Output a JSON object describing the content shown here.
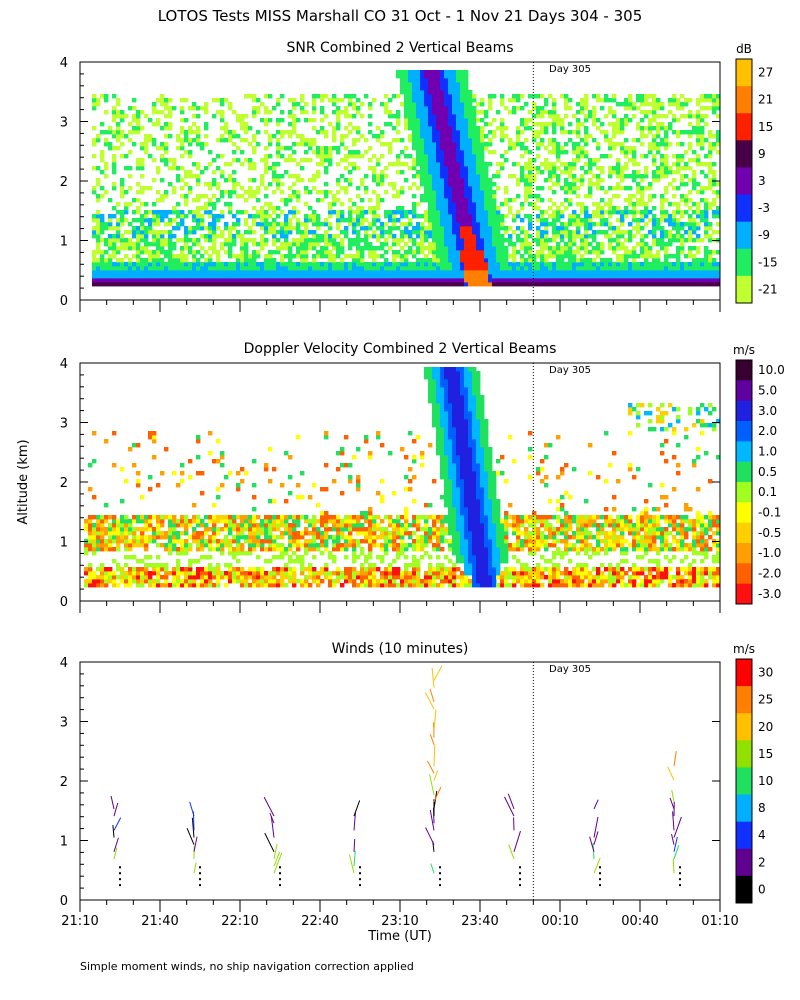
{
  "figure": {
    "title": "LOTOS Tests MISS Marshall CO  31 Oct -  1 Nov 21 Days 304 - 305",
    "ylabel": "Altitude (km)",
    "xlabel": "Time (UT)",
    "footnote": "Simple moment winds, no ship navigation correction applied",
    "day_marker": "Day 305",
    "x_ticks": [
      "21:10",
      "21:40",
      "22:10",
      "22:40",
      "23:10",
      "23:40",
      "00:10",
      "00:40",
      "01:10"
    ],
    "y_ticks": [
      "0",
      "1",
      "2",
      "3",
      "4"
    ]
  },
  "chart_data": [
    {
      "type": "heatmap",
      "title": "SNR Combined 2 Vertical Beams",
      "xlabel": "",
      "ylabel": "Altitude (km)",
      "x_range_minutes_after_2110": [
        0,
        240
      ],
      "ylim": [
        0,
        4
      ],
      "day_boundary_minutes": 170,
      "colorbar": {
        "unit": "dB",
        "ticks": [
          "27",
          "21",
          "15",
          "9",
          "3",
          "-3",
          "-9",
          "-15",
          "-21"
        ],
        "colors": [
          "#ffc000",
          "#ff8000",
          "#ff2000",
          "#480048",
          "#7000b0",
          "#1030ff",
          "#00b0ff",
          "#20ee60",
          "#c0ff30"
        ]
      }
    },
    {
      "type": "heatmap",
      "title": "Doppler Velocity Combined 2 Vertical Beams",
      "xlabel": "",
      "ylabel": "Altitude (km)",
      "x_range_minutes_after_2110": [
        0,
        240
      ],
      "ylim": [
        0,
        4
      ],
      "day_boundary_minutes": 170,
      "colorbar": {
        "unit": "m/s",
        "ticks": [
          "10.0",
          "5.0",
          "3.0",
          "2.0",
          "1.0",
          "0.5",
          "0.1",
          "-0.1",
          "-0.5",
          "-1.0",
          "-2.0",
          "-3.0"
        ],
        "colors": [
          "#380030",
          "#6000a0",
          "#2020e0",
          "#0060ff",
          "#00b8ff",
          "#20e060",
          "#a0ff20",
          "#ffff00",
          "#ffd000",
          "#ffa000",
          "#ff6000",
          "#ff1010"
        ]
      }
    },
    {
      "type": "scatter",
      "title": "Winds (10 minutes)",
      "xlabel": "Time (UT)",
      "ylabel": "Altitude (km)",
      "x_range_minutes_after_2110": [
        0,
        240
      ],
      "ylim": [
        0,
        4
      ],
      "day_boundary_minutes": 170,
      "profile_times_minutes": [
        15,
        45,
        75,
        105,
        135,
        165,
        195,
        225
      ],
      "colorbar": {
        "unit": "m/s",
        "ticks": [
          "30",
          "25",
          "20",
          "15",
          "10",
          "8",
          "4",
          "2",
          "0"
        ],
        "colors": [
          "#ff0000",
          "#ff8000",
          "#ffc000",
          "#90e000",
          "#20e060",
          "#00b0ff",
          "#1030ff",
          "#600090",
          "#000000"
        ]
      }
    }
  ]
}
